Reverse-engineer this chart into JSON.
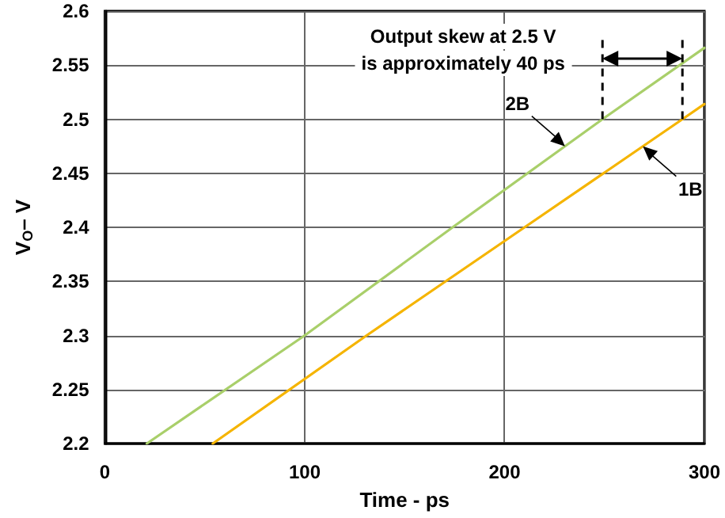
{
  "chart_data": {
    "type": "line",
    "xlabel": "Time - ps",
    "ylabel": "V$_{O}$– V",
    "series": [
      {
        "name": "2B",
        "color": "#a9cf6a",
        "x": [
          21,
          100,
          174,
          249,
          300
        ],
        "values": [
          2.2,
          2.3,
          2.4,
          2.5,
          2.566
        ]
      },
      {
        "name": "1B",
        "color": "#f5b400",
        "x": [
          54,
          131,
          210,
          289,
          300
        ],
        "values": [
          2.2,
          2.3,
          2.4,
          2.5,
          2.514
        ]
      }
    ],
    "xlim": [
      0,
      300
    ],
    "xticks": [
      0,
      100,
      200,
      300
    ],
    "ylim": [
      2.2,
      2.6
    ],
    "yticks": [
      2.2,
      2.25,
      2.3,
      2.35,
      2.4,
      2.45,
      2.5,
      2.55,
      2.6
    ],
    "grid": true,
    "legend": false,
    "marker": "none",
    "line_style": "solid",
    "ref_lines": [
      {
        "axis": "x",
        "value": 249,
        "color": "#000000",
        "line_style": "dashed"
      },
      {
        "axis": "x",
        "value": 289,
        "color": "#000000",
        "line_style": "dashed"
      }
    ],
    "annotations": [
      "Output skew at 2.5 V\nis approximately 40 ps"
    ]
  }
}
